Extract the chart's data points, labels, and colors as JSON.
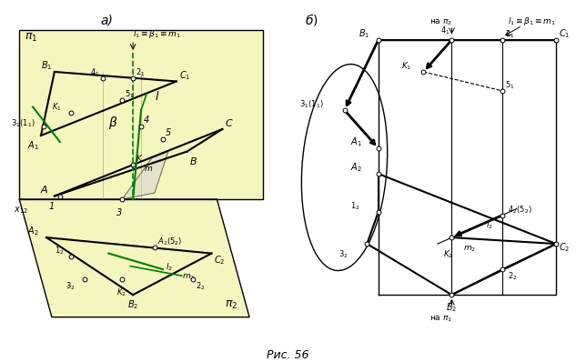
{
  "title": "Рис. 56",
  "panel_a_bg": "#f0f0c0",
  "fig_label_a": "а)",
  "fig_label_b": "б)"
}
